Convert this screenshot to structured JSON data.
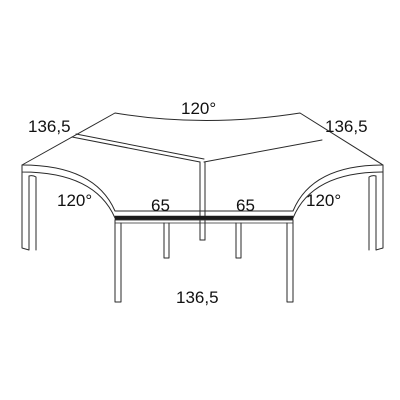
{
  "dimensions": {
    "top_angle": "120°",
    "left_depth": "136,5",
    "right_depth": "136,5",
    "left_angle": "120°",
    "right_angle": "120°",
    "left_width": "65",
    "right_width": "65",
    "front_length": "136,5"
  },
  "colors": {
    "line": "#2a2a2a",
    "text": "#111111",
    "background": "#ffffff"
  }
}
